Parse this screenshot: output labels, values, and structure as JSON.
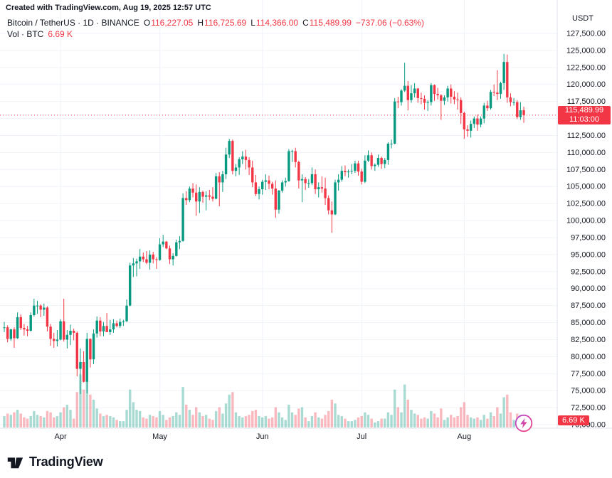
{
  "header": {
    "attribution": "Created with TradingView.com, Aug 19, 2025 12:57 UTC"
  },
  "legend": {
    "title": "Bitcoin / TetherUS · 1D · BINANCE",
    "o_label": "O",
    "o_value": "116,227.05",
    "h_label": "H",
    "h_value": "116,725.69",
    "l_label": "L",
    "l_value": "114,366.00",
    "c_label": "C",
    "c_value": "115,489.99",
    "change": "−737.06 (−0.63%)",
    "vol_label": "Vol · BTC",
    "vol_value": "6.69 K"
  },
  "price_scale": {
    "unit": "USDT",
    "last_price": "115,489.99",
    "countdown": "11:03:00",
    "volume_badge": "6.69 K"
  },
  "footer": {
    "brand": "TradingView"
  },
  "chart_data": {
    "type": "candlestick",
    "title": "Bitcoin / TetherUS, 1D, BINANCE",
    "volume_unit": "K BTC",
    "y_axis": {
      "min": 70000,
      "max": 127500,
      "step": 2500,
      "unit": "USDT"
    },
    "x_axis": {
      "months": [
        {
          "label": "Apr",
          "index": 17
        },
        {
          "label": "May",
          "index": 47
        },
        {
          "label": "Jun",
          "index": 78
        },
        {
          "label": "Jul",
          "index": 108
        },
        {
          "label": "Aug",
          "index": 139
        }
      ]
    },
    "colors": {
      "up": "#089981",
      "down": "#F23645",
      "volume_up": "rgba(8,153,129,0.35)",
      "volume_down": "rgba(242,54,69,0.35)",
      "last_price_line": "#F23645",
      "badge": "#F23645",
      "grid": "#f0f3fa",
      "axis_border": "#e0e3eb"
    },
    "candles_format": [
      "open",
      "high",
      "low",
      "close",
      "volume_k_btc"
    ],
    "candles": [
      [
        84200,
        85100,
        83600,
        84300,
        9
      ],
      [
        84300,
        84600,
        82100,
        82600,
        11
      ],
      [
        82600,
        84100,
        82300,
        84000,
        10
      ],
      [
        84000,
        84300,
        81300,
        82700,
        12
      ],
      [
        82700,
        86500,
        82600,
        85800,
        14
      ],
      [
        85800,
        86200,
        83900,
        84200,
        11
      ],
      [
        84200,
        84800,
        83100,
        84000,
        8
      ],
      [
        84000,
        84500,
        83000,
        83800,
        7
      ],
      [
        83800,
        86500,
        83700,
        86100,
        9
      ],
      [
        86100,
        88500,
        85900,
        87500,
        13
      ],
      [
        87500,
        88200,
        86300,
        87500,
        10
      ],
      [
        87500,
        87700,
        85800,
        86900,
        9
      ],
      [
        86900,
        87800,
        86000,
        87200,
        8
      ],
      [
        87200,
        87400,
        83700,
        84400,
        13
      ],
      [
        84400,
        84800,
        81600,
        82600,
        12
      ],
      [
        82600,
        83500,
        81300,
        82300,
        8
      ],
      [
        82300,
        83900,
        81500,
        82500,
        9
      ],
      [
        82500,
        85500,
        82400,
        85200,
        12
      ],
      [
        85200,
        88500,
        82200,
        82500,
        16
      ],
      [
        82500,
        83900,
        81200,
        83200,
        18
      ],
      [
        83200,
        84700,
        81700,
        83800,
        14
      ],
      [
        83800,
        84100,
        82400,
        83500,
        7
      ],
      [
        83500,
        83700,
        77100,
        78200,
        28
      ],
      [
        78200,
        81200,
        74500,
        79200,
        42
      ],
      [
        79200,
        80800,
        76200,
        76300,
        30
      ],
      [
        76300,
        83500,
        74600,
        82600,
        40
      ],
      [
        82600,
        82700,
        78400,
        79600,
        26
      ],
      [
        79600,
        84000,
        78900,
        83400,
        22
      ],
      [
        83400,
        85900,
        82800,
        85300,
        15
      ],
      [
        85300,
        85800,
        83000,
        83700,
        11
      ],
      [
        83700,
        85100,
        83000,
        84500,
        9
      ],
      [
        84500,
        86400,
        83600,
        83600,
        10
      ],
      [
        83600,
        85400,
        83200,
        84000,
        9
      ],
      [
        84000,
        85500,
        83500,
        84900,
        8
      ],
      [
        84900,
        85300,
        84300,
        84500,
        6
      ],
      [
        84500,
        85600,
        84200,
        85100,
        5
      ],
      [
        85100,
        85400,
        84500,
        85200,
        5
      ],
      [
        85200,
        88400,
        85100,
        87500,
        14
      ],
      [
        87500,
        93800,
        87400,
        93400,
        30
      ],
      [
        93400,
        94500,
        91700,
        93700,
        20
      ],
      [
        93700,
        94400,
        91800,
        94000,
        14
      ],
      [
        94000,
        95800,
        92900,
        94700,
        13
      ],
      [
        94700,
        95300,
        93900,
        94300,
        8
      ],
      [
        94300,
        95500,
        93600,
        93800,
        7
      ],
      [
        93800,
        95600,
        92800,
        95000,
        10
      ],
      [
        95000,
        95400,
        93700,
        94300,
        9
      ],
      [
        94300,
        94600,
        92900,
        94200,
        8
      ],
      [
        94200,
        97400,
        94100,
        96500,
        13
      ],
      [
        96500,
        97900,
        96100,
        96900,
        10
      ],
      [
        96900,
        97000,
        95800,
        95900,
        6
      ],
      [
        95900,
        96300,
        93600,
        94300,
        8
      ],
      [
        94300,
        95200,
        93400,
        94800,
        9
      ],
      [
        94800,
        97200,
        94700,
        96800,
        12
      ],
      [
        96800,
        97700,
        95800,
        97000,
        10
      ],
      [
        97000,
        104000,
        96900,
        103300,
        32
      ],
      [
        103300,
        104300,
        102300,
        103000,
        18
      ],
      [
        103000,
        105000,
        102700,
        104700,
        14
      ],
      [
        104700,
        105500,
        103400,
        104100,
        10
      ],
      [
        104100,
        105300,
        100700,
        102800,
        16
      ],
      [
        102800,
        104900,
        101100,
        104200,
        12
      ],
      [
        104200,
        104400,
        102600,
        103500,
        9
      ],
      [
        103500,
        104300,
        101500,
        103700,
        10
      ],
      [
        103700,
        104500,
        103000,
        103500,
        7
      ],
      [
        103500,
        104900,
        102800,
        103200,
        6
      ],
      [
        103200,
        107000,
        103100,
        106500,
        13
      ],
      [
        106500,
        107100,
        102100,
        105600,
        16
      ],
      [
        105600,
        107300,
        104200,
        106800,
        11
      ],
      [
        106800,
        110700,
        106100,
        109700,
        19
      ],
      [
        109700,
        112000,
        109200,
        111700,
        26
      ],
      [
        111700,
        111900,
        106800,
        107300,
        28
      ],
      [
        107300,
        108300,
        106500,
        107800,
        12
      ],
      [
        107800,
        109300,
        106700,
        109000,
        9
      ],
      [
        109000,
        110200,
        108300,
        109400,
        8
      ],
      [
        109400,
        110400,
        107500,
        108900,
        9
      ],
      [
        108900,
        109300,
        106700,
        107800,
        10
      ],
      [
        107800,
        108800,
        104900,
        105600,
        13
      ],
      [
        105600,
        106700,
        103600,
        103900,
        14
      ],
      [
        103900,
        105000,
        103100,
        104600,
        9
      ],
      [
        104600,
        106000,
        103800,
        105700,
        8
      ],
      [
        105700,
        106800,
        104500,
        105900,
        9
      ],
      [
        105900,
        106600,
        104600,
        105400,
        7
      ],
      [
        105400,
        105700,
        103800,
        104700,
        8
      ],
      [
        104700,
        105900,
        100400,
        101600,
        16
      ],
      [
        101600,
        104500,
        101000,
        104400,
        12
      ],
      [
        104400,
        105900,
        104100,
        105600,
        8
      ],
      [
        105600,
        106300,
        105000,
        105800,
        6
      ],
      [
        105800,
        110500,
        105700,
        110200,
        18
      ],
      [
        110200,
        110400,
        108600,
        110200,
        12
      ],
      [
        110200,
        110700,
        107800,
        108600,
        10
      ],
      [
        108600,
        108800,
        104700,
        105900,
        15
      ],
      [
        105900,
        106800,
        102700,
        106100,
        16
      ],
      [
        106100,
        106400,
        104500,
        105500,
        8
      ],
      [
        105500,
        106100,
        104800,
        105500,
        5
      ],
      [
        105500,
        107800,
        105200,
        106800,
        9
      ],
      [
        106800,
        107500,
        103900,
        104600,
        12
      ],
      [
        104600,
        105600,
        103400,
        104900,
        8
      ],
      [
        104900,
        106500,
        104100,
        104700,
        7
      ],
      [
        104700,
        106300,
        102300,
        103300,
        10
      ],
      [
        103300,
        103700,
        100900,
        101500,
        13
      ],
      [
        101500,
        102800,
        98200,
        100900,
        22
      ],
      [
        100900,
        106000,
        100800,
        105600,
        19
      ],
      [
        105600,
        106800,
        104400,
        106000,
        10
      ],
      [
        106000,
        108000,
        105700,
        107300,
        9
      ],
      [
        107300,
        108100,
        106500,
        107100,
        7
      ],
      [
        107100,
        107500,
        106300,
        107200,
        5
      ],
      [
        107200,
        108300,
        106800,
        107300,
        5
      ],
      [
        107300,
        108800,
        107000,
        108400,
        6
      ],
      [
        108400,
        108800,
        106600,
        107200,
        8
      ],
      [
        107200,
        107600,
        105300,
        105700,
        9
      ],
      [
        105700,
        109600,
        105500,
        108800,
        12
      ],
      [
        108800,
        110300,
        108600,
        109600,
        10
      ],
      [
        109600,
        110000,
        107500,
        108000,
        7
      ],
      [
        108000,
        108400,
        107300,
        108200,
        4
      ],
      [
        108200,
        109700,
        107900,
        109200,
        5
      ],
      [
        109200,
        109400,
        107600,
        108300,
        7
      ],
      [
        108300,
        109200,
        107700,
        108900,
        7
      ],
      [
        108900,
        111500,
        108200,
        111300,
        12
      ],
      [
        111300,
        111900,
        110600,
        111300,
        10
      ],
      [
        111300,
        118000,
        111200,
        117500,
        30
      ],
      [
        117500,
        118200,
        116500,
        117400,
        16
      ],
      [
        117400,
        119300,
        116900,
        119100,
        12
      ],
      [
        119100,
        123200,
        118900,
        119800,
        34
      ],
      [
        119800,
        120500,
        116200,
        117700,
        22
      ],
      [
        117700,
        119900,
        117300,
        118700,
        14
      ],
      [
        118700,
        120200,
        118100,
        119400,
        11
      ],
      [
        119400,
        119500,
        117300,
        118000,
        10
      ],
      [
        118000,
        118800,
        117100,
        117900,
        7
      ],
      [
        117900,
        118400,
        116300,
        117300,
        8
      ],
      [
        117300,
        117700,
        116100,
        117400,
        7
      ],
      [
        117400,
        120200,
        116900,
        119900,
        13
      ],
      [
        119900,
        120000,
        117600,
        118600,
        11
      ],
      [
        118600,
        119500,
        117800,
        118400,
        8
      ],
      [
        118400,
        118600,
        114800,
        117600,
        15
      ],
      [
        117600,
        118400,
        117000,
        118100,
        6
      ],
      [
        118100,
        119800,
        117500,
        119400,
        8
      ],
      [
        119400,
        120000,
        117200,
        118200,
        10
      ],
      [
        118200,
        119000,
        117100,
        117800,
        8
      ],
      [
        117800,
        118800,
        116300,
        117700,
        9
      ],
      [
        117700,
        118100,
        114200,
        115800,
        16
      ],
      [
        115800,
        116000,
        112000,
        113400,
        20
      ],
      [
        113400,
        114000,
        112300,
        113200,
        10
      ],
      [
        113200,
        114700,
        112200,
        114200,
        8
      ],
      [
        114200,
        115300,
        113600,
        115000,
        7
      ],
      [
        115000,
        115600,
        113200,
        114100,
        8
      ],
      [
        114100,
        115300,
        113700,
        115000,
        6
      ],
      [
        115000,
        117300,
        114300,
        116900,
        10
      ],
      [
        116900,
        117600,
        116100,
        116500,
        7
      ],
      [
        116500,
        119200,
        116300,
        118900,
        12
      ],
      [
        118900,
        120000,
        118300,
        118800,
        9
      ],
      [
        118800,
        122100,
        117700,
        118600,
        16
      ],
      [
        118600,
        120400,
        117900,
        120200,
        11
      ],
      [
        120200,
        124500,
        119200,
        123300,
        24
      ],
      [
        123300,
        124400,
        117300,
        118100,
        26
      ],
      [
        118100,
        118700,
        116800,
        117400,
        12
      ],
      [
        117400,
        118000,
        116900,
        117400,
        6
      ],
      [
        117400,
        117700,
        114900,
        115200,
        11
      ],
      [
        115200,
        117400,
        114800,
        116200,
        10
      ],
      [
        116227.05,
        116725.69,
        114366,
        115489.99,
        6.69
      ]
    ]
  }
}
